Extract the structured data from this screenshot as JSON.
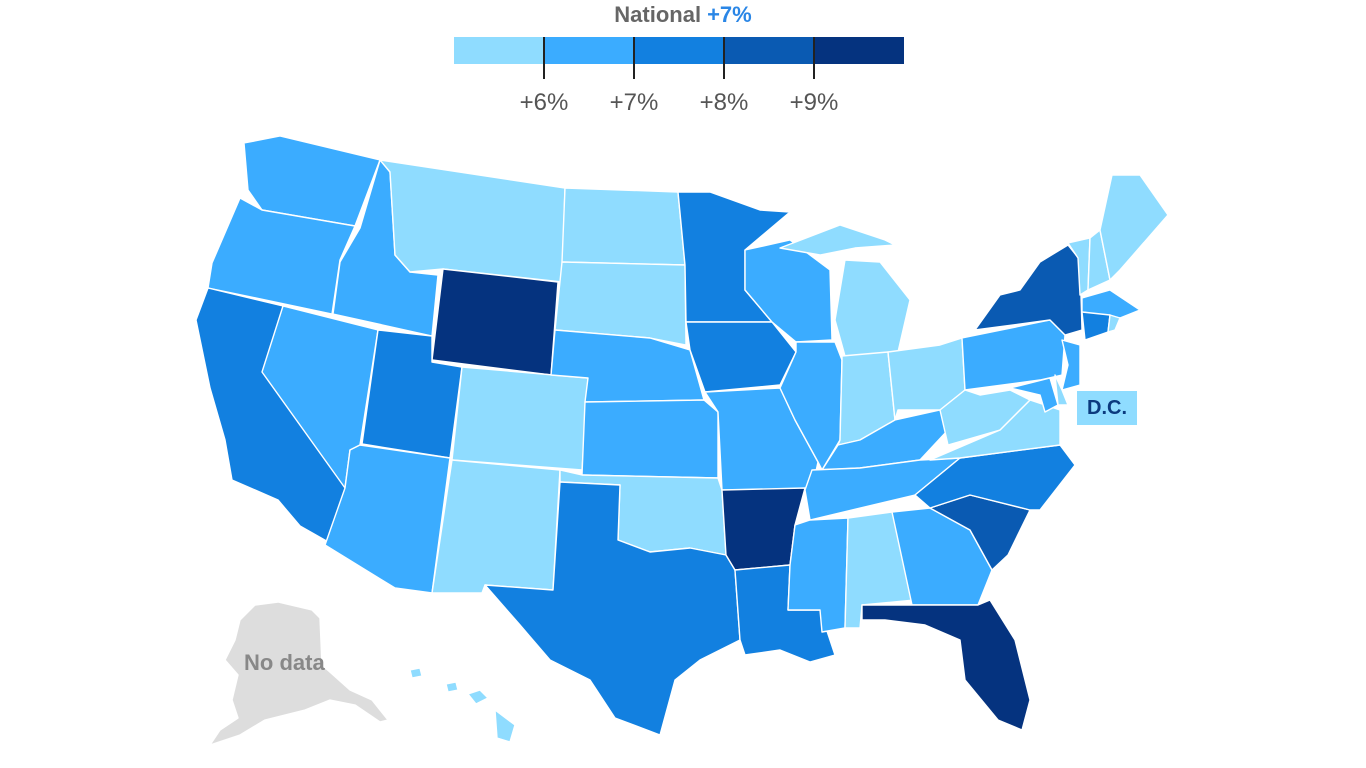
{
  "header": {
    "national_label": "National",
    "national_value": "+7%"
  },
  "colors": {
    "text_gray": "#666666",
    "national_value": "#2a86e6",
    "bin_1": "#8fdcff",
    "bin_2": "#3bacff",
    "bin_3": "#1280e0",
    "bin_4": "#0a5ab2",
    "bin_5": "#05337f",
    "no_data": "#dddddd",
    "dc_text": "#0b3a7e"
  },
  "legend": {
    "bins": [
      "bin_1",
      "bin_2",
      "bin_3",
      "bin_4",
      "bin_5"
    ],
    "ticks": [
      "+6%",
      "+7%",
      "+8%",
      "+9%"
    ]
  },
  "map": {
    "dc_label": "D.C.",
    "no_data_label": "No data",
    "states": {
      "WA": "bin_2",
      "OR": "bin_2",
      "CA": "bin_3",
      "ID": "bin_2",
      "NV": "bin_2",
      "MT": "bin_1",
      "WY": "bin_5",
      "UT": "bin_3",
      "AZ": "bin_2",
      "CO": "bin_1",
      "NM": "bin_1",
      "ND": "bin_1",
      "SD": "bin_1",
      "NE": "bin_2",
      "KS": "bin_2",
      "OK": "bin_1",
      "TX": "bin_3",
      "MN": "bin_3",
      "IA": "bin_3",
      "MO": "bin_2",
      "AR": "bin_5",
      "LA": "bin_3",
      "WI": "bin_2",
      "IL": "bin_2",
      "MI": "bin_1",
      "IN": "bin_1",
      "OH": "bin_1",
      "KY": "bin_2",
      "TN": "bin_2",
      "MS": "bin_2",
      "AL": "bin_1",
      "GA": "bin_2",
      "FL": "bin_5",
      "SC": "bin_4",
      "NC": "bin_3",
      "VA": "bin_1",
      "WV": "bin_1",
      "PA": "bin_2",
      "NY": "bin_4",
      "VT": "bin_1",
      "NH": "bin_1",
      "ME": "bin_1",
      "MA": "bin_2",
      "CT": "bin_3",
      "RI": "bin_1",
      "NJ": "bin_2",
      "DE": "bin_1",
      "MD": "bin_2",
      "DC": "bin_1",
      "HI": "bin_1",
      "AK": "no_data"
    }
  }
}
